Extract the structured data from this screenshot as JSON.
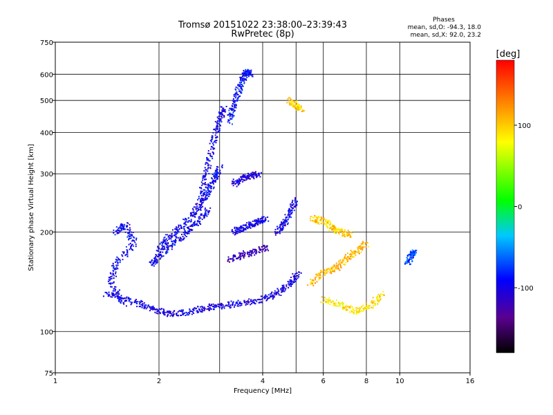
{
  "chart_data": {
    "type": "scatter",
    "title": "Tromsø 20151022 23:38:00–23:39:43",
    "subtitle": "RwPretec (8p)",
    "xlabel": "Frequency [MHz]",
    "ylabel": "Stationary phase Virtual Height [km]",
    "x_scale": "log",
    "y_scale": "log",
    "xlim": [
      1,
      16
    ],
    "ylim": [
      75,
      750
    ],
    "x_ticks": [
      1,
      2,
      4,
      6,
      8,
      10,
      16
    ],
    "x_tick_labels": [
      "1",
      "2",
      "4",
      "6",
      "8",
      "10",
      "16"
    ],
    "y_ticks": [
      75,
      100,
      200,
      300,
      400,
      500,
      600,
      750
    ],
    "y_tick_labels": [
      "75",
      "100",
      "200",
      "300",
      "400",
      "500",
      "600",
      "750"
    ],
    "x_gridlines": [
      2,
      3,
      4,
      5,
      6,
      8,
      10
    ],
    "y_gridlines": [
      100,
      200,
      300,
      400,
      500,
      600
    ],
    "grid": true,
    "colorbar": {
      "label": "[deg]",
      "range": [
        -180,
        180
      ],
      "ticks": [
        100,
        0,
        -100
      ],
      "tick_labels": [
        "100",
        "0",
        "-100"
      ],
      "colormap": "rainbow (black–purple–blue–cyan–green–yellow–orange–red)"
    },
    "phase_stats": {
      "heading": "Phases",
      "line_o": "mean, sd,O:  -94.3, 18.0",
      "line_x": "mean, sd,X:  92.0, 23.2"
    },
    "traces": [
      {
        "name_shown": false,
        "phase": -100,
        "points": [
          [
            1.4,
            130
          ],
          [
            1.6,
            125
          ],
          [
            1.8,
            120
          ],
          [
            2.0,
            115
          ],
          [
            2.2,
            113
          ],
          [
            2.5,
            115
          ],
          [
            2.8,
            118
          ],
          [
            3.1,
            120
          ],
          [
            3.5,
            122
          ],
          [
            4.0,
            125
          ],
          [
            4.4,
            130
          ],
          [
            4.8,
            140
          ],
          [
            5.1,
            150
          ]
        ]
      },
      {
        "name_shown": false,
        "phase": -95,
        "points": [
          [
            2.0,
            175
          ],
          [
            2.1,
            190
          ],
          [
            2.3,
            205
          ],
          [
            2.5,
            225
          ],
          [
            2.7,
            250
          ],
          [
            2.8,
            270
          ],
          [
            2.9,
            290
          ],
          [
            3.0,
            315
          ]
        ]
      },
      {
        "name_shown": false,
        "phase": -95,
        "points": [
          [
            1.9,
            160
          ],
          [
            2.0,
            170
          ],
          [
            2.2,
            185
          ],
          [
            2.4,
            200
          ],
          [
            2.6,
            215
          ],
          [
            2.8,
            235
          ]
        ]
      },
      {
        "name_shown": false,
        "phase": -100,
        "points": [
          [
            2.6,
            230
          ],
          [
            2.7,
            280
          ],
          [
            2.8,
            330
          ],
          [
            2.9,
            390
          ],
          [
            3.0,
            440
          ],
          [
            3.1,
            480
          ]
        ]
      },
      {
        "name_shown": false,
        "phase": -90,
        "points": [
          [
            3.2,
            430
          ],
          [
            3.3,
            480
          ],
          [
            3.4,
            530
          ],
          [
            3.5,
            580
          ],
          [
            3.6,
            610
          ],
          [
            3.7,
            600
          ]
        ]
      },
      {
        "name_shown": false,
        "phase": -100,
        "points": [
          [
            3.3,
            200
          ],
          [
            3.5,
            205
          ],
          [
            3.7,
            210
          ],
          [
            3.9,
            215
          ],
          [
            4.1,
            220
          ]
        ]
      },
      {
        "name_shown": false,
        "phase": -110,
        "points": [
          [
            3.3,
            280
          ],
          [
            3.5,
            290
          ],
          [
            3.7,
            295
          ],
          [
            3.9,
            300
          ]
        ]
      },
      {
        "name_shown": false,
        "phase": -120,
        "points": [
          [
            3.2,
            165
          ],
          [
            3.5,
            170
          ],
          [
            3.8,
            175
          ],
          [
            4.2,
            180
          ]
        ]
      },
      {
        "name_shown": false,
        "phase": -100,
        "points": [
          [
            4.4,
            200
          ],
          [
            4.6,
            210
          ],
          [
            4.8,
            230
          ],
          [
            5.0,
            250
          ]
        ]
      },
      {
        "name_shown": false,
        "phase": 100,
        "points": [
          [
            5.6,
            220
          ],
          [
            6.0,
            215
          ],
          [
            6.4,
            205
          ],
          [
            6.8,
            200
          ],
          [
            7.2,
            195
          ]
        ]
      },
      {
        "name_shown": false,
        "phase": 110,
        "points": [
          [
            5.5,
            140
          ],
          [
            6.0,
            150
          ],
          [
            6.5,
            155
          ],
          [
            7.0,
            165
          ],
          [
            7.5,
            175
          ],
          [
            8.0,
            185
          ]
        ]
      },
      {
        "name_shown": false,
        "phase": 90,
        "points": [
          [
            6.0,
            125
          ],
          [
            6.8,
            120
          ],
          [
            7.5,
            115
          ],
          [
            8.2,
            120
          ],
          [
            9.0,
            130
          ]
        ]
      },
      {
        "name_shown": false,
        "phase": 95,
        "points": [
          [
            4.8,
            500
          ],
          [
            5.0,
            480
          ],
          [
            5.2,
            470
          ]
        ]
      },
      {
        "name_shown": false,
        "phase": -70,
        "points": [
          [
            10.5,
            160
          ],
          [
            10.8,
            170
          ],
          [
            11.0,
            175
          ]
        ]
      },
      {
        "name_shown": false,
        "phase": -95,
        "points": [
          [
            1.5,
            200
          ],
          [
            1.6,
            210
          ],
          [
            1.7,
            185
          ],
          [
            1.5,
            160
          ],
          [
            1.45,
            140
          ],
          [
            1.6,
            120
          ]
        ]
      }
    ]
  }
}
